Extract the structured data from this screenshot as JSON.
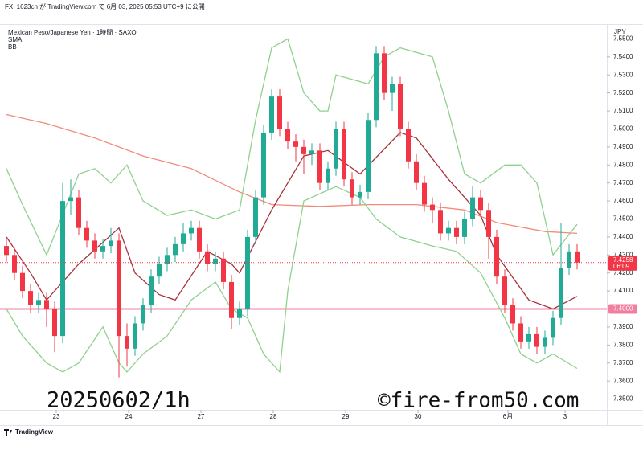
{
  "header": {
    "publisher": "FX_1623ch が TradingView.com で 6月 03, 2025 05:53 UTC+9 に公開"
  },
  "chart_data": {
    "type": "candlestick",
    "title": "Mexican Peso/Japanese Yen · 1時間 · SAXO",
    "currency": "JPY",
    "up_color": "#22ab94",
    "down_color": "#f23645",
    "x": [
      0,
      1,
      2,
      3,
      4,
      5,
      6,
      7,
      8,
      9,
      10,
      11,
      12,
      13,
      14,
      15,
      16,
      17,
      18,
      19,
      20,
      21,
      22,
      23,
      24,
      25,
      26,
      27,
      28,
      29,
      30,
      31,
      32,
      33,
      34,
      35,
      36,
      37,
      38,
      39,
      40,
      41,
      42,
      43,
      44,
      45,
      46,
      47,
      48,
      49,
      50,
      51,
      52,
      53,
      54,
      55,
      56,
      57,
      58,
      59,
      60,
      61,
      62,
      63,
      64,
      65,
      66,
      67,
      68,
      69,
      70,
      71
    ],
    "open": [
      7.435,
      7.43,
      7.42,
      7.41,
      7.402,
      7.405,
      7.4,
      7.385,
      7.46,
      7.462,
      7.445,
      7.438,
      7.432,
      7.435,
      7.438,
      7.385,
      7.378,
      7.392,
      7.402,
      7.418,
      7.425,
      7.43,
      7.436,
      7.442,
      7.445,
      7.432,
      7.425,
      7.428,
      7.415,
      7.395,
      7.4,
      7.44,
      7.462,
      7.498,
      7.518,
      7.5,
      7.493,
      7.49,
      7.486,
      7.488,
      7.47,
      7.478,
      7.5,
      7.472,
      7.462,
      7.465,
      7.505,
      7.542,
      7.52,
      7.525,
      7.5,
      7.482,
      7.47,
      7.458,
      7.455,
      7.442,
      7.445,
      7.44,
      7.45,
      7.462,
      7.455,
      7.44,
      7.418,
      7.402,
      7.392,
      7.382,
      7.386,
      7.379,
      7.384,
      7.395,
      7.423,
      7.432
    ],
    "high": [
      7.439,
      7.434,
      7.424,
      7.414,
      7.409,
      7.409,
      7.404,
      7.47,
      7.472,
      7.466,
      7.449,
      7.442,
      7.439,
      7.445,
      7.442,
      7.392,
      7.396,
      7.406,
      7.422,
      7.429,
      7.434,
      7.44,
      7.448,
      7.449,
      7.449,
      7.436,
      7.432,
      7.432,
      7.419,
      7.404,
      7.444,
      7.466,
      7.502,
      7.522,
      7.522,
      7.504,
      7.497,
      7.494,
      7.492,
      7.492,
      7.482,
      7.504,
      7.504,
      7.476,
      7.469,
      7.509,
      7.546,
      7.546,
      7.529,
      7.529,
      7.504,
      7.486,
      7.474,
      7.462,
      7.459,
      7.449,
      7.449,
      7.454,
      7.468,
      7.466,
      7.459,
      7.444,
      7.422,
      7.406,
      7.396,
      7.39,
      7.39,
      7.388,
      7.399,
      7.448,
      7.436,
      7.436
    ],
    "low": [
      7.426,
      7.416,
      7.406,
      7.398,
      7.398,
      7.39,
      7.376,
      7.381,
      7.452,
      7.441,
      7.434,
      7.428,
      7.428,
      7.431,
      7.362,
      7.368,
      7.374,
      7.388,
      7.398,
      7.414,
      7.421,
      7.426,
      7.432,
      7.438,
      7.428,
      7.421,
      7.421,
      7.411,
      7.389,
      7.391,
      7.396,
      7.436,
      7.458,
      7.494,
      7.496,
      7.489,
      7.482,
      7.475,
      7.48,
      7.466,
      7.466,
      7.474,
      7.468,
      7.458,
      7.458,
      7.461,
      7.501,
      7.516,
      7.51,
      7.496,
      7.478,
      7.466,
      7.454,
      7.448,
      7.438,
      7.438,
      7.436,
      7.436,
      7.446,
      7.451,
      7.428,
      7.414,
      7.398,
      7.388,
      7.378,
      7.378,
      7.375,
      7.375,
      7.38,
      7.391,
      7.419,
      7.422
    ],
    "close": [
      7.43,
      7.42,
      7.41,
      7.402,
      7.405,
      7.4,
      7.385,
      7.46,
      7.462,
      7.445,
      7.438,
      7.432,
      7.435,
      7.438,
      7.385,
      7.378,
      7.392,
      7.402,
      7.418,
      7.425,
      7.43,
      7.436,
      7.442,
      7.445,
      7.432,
      7.425,
      7.428,
      7.415,
      7.395,
      7.4,
      7.44,
      7.462,
      7.498,
      7.518,
      7.5,
      7.493,
      7.49,
      7.486,
      7.488,
      7.47,
      7.478,
      7.5,
      7.472,
      7.462,
      7.465,
      7.505,
      7.542,
      7.52,
      7.525,
      7.5,
      7.482,
      7.47,
      7.458,
      7.455,
      7.442,
      7.445,
      7.44,
      7.45,
      7.462,
      7.455,
      7.44,
      7.418,
      7.402,
      7.392,
      7.382,
      7.386,
      7.379,
      7.384,
      7.395,
      7.423,
      7.432,
      7.4258
    ],
    "indicators": [
      {
        "name": "SMA",
        "lines": [
          {
            "color": "#f28b7a",
            "x": [
              0,
              5,
              11,
              17,
              23,
              29,
              33,
              39,
              45,
              51,
              57,
              61,
              67,
              71
            ],
            "values": [
              7.508,
              7.503,
              7.495,
              7.485,
              7.478,
              7.465,
              7.458,
              7.457,
              7.458,
              7.458,
              7.455,
              7.448,
              7.443,
              7.442
            ]
          }
        ]
      },
      {
        "name": "BB",
        "lines": [
          {
            "color": "#a8323c",
            "x": [
              0,
              3,
              5,
              9,
              14,
              16,
              19,
              21,
              25,
              28,
              29,
              33,
              37,
              40,
              44,
              49,
              51,
              55,
              59,
              61,
              65,
              68,
              71
            ],
            "values": [
              7.44,
              7.42,
              7.405,
              7.425,
              7.445,
              7.42,
              7.408,
              7.405,
              7.432,
              7.425,
              7.42,
              7.455,
              7.485,
              7.488,
              7.475,
              7.498,
              7.495,
              7.472,
              7.452,
              7.43,
              7.405,
              7.4,
              7.407
            ]
          },
          {
            "color": "#8fd18f",
            "x": [
              0,
              2,
              5,
              9,
              11,
              13,
              15,
              17,
              20,
              23,
              26,
              29,
              31,
              33,
              35,
              37,
              39,
              40,
              41,
              45,
              47,
              49,
              53,
              55,
              57,
              59,
              62,
              64,
              66,
              68,
              71
            ],
            "values": [
              7.478,
              7.458,
              7.43,
              7.475,
              7.478,
              7.47,
              7.48,
              7.46,
              7.452,
              7.455,
              7.45,
              7.455,
              7.505,
              7.545,
              7.55,
              7.52,
              7.51,
              7.51,
              7.53,
              7.525,
              7.54,
              7.545,
              7.54,
              7.51,
              7.475,
              7.47,
              7.48,
              7.48,
              7.47,
              7.43,
              7.447
            ]
          },
          {
            "color": "#8fd18f",
            "x": [
              0,
              2,
              5,
              7,
              9,
              12,
              14,
              15,
              17,
              20,
              23,
              26,
              28,
              30,
              32,
              34,
              35,
              37,
              41,
              44,
              46,
              49,
              53,
              56,
              59,
              62,
              64,
              66,
              68,
              71
            ],
            "values": [
              7.4,
              7.385,
              7.37,
              7.365,
              7.37,
              7.39,
              7.37,
              7.365,
              7.375,
              7.385,
              7.405,
              7.415,
              7.4,
              7.395,
              7.375,
              7.365,
              7.41,
              7.46,
              7.468,
              7.462,
              7.45,
              7.44,
              7.435,
              7.432,
              7.42,
              7.395,
              7.375,
              7.37,
              7.375,
              7.367
            ]
          }
        ]
      }
    ],
    "xlim": [
      -0.8,
      74.7
    ],
    "ylim": [
      7.344,
      7.558
    ],
    "xticks": [
      {
        "value": 6.2,
        "label": "23"
      },
      {
        "value": 15.2,
        "label": "24"
      },
      {
        "value": 24.2,
        "label": "27"
      },
      {
        "value": 33.2,
        "label": "28"
      },
      {
        "value": 42.2,
        "label": "29"
      },
      {
        "value": 51.2,
        "label": "30"
      },
      {
        "value": 62.4,
        "label": "6月"
      },
      {
        "value": 69.5,
        "label": "3"
      }
    ],
    "yticks": [
      {
        "value": 7.35,
        "label": "7.3500"
      },
      {
        "value": 7.36,
        "label": "7.3600"
      },
      {
        "value": 7.37,
        "label": "7.3700"
      },
      {
        "value": 7.38,
        "label": "7.3800"
      },
      {
        "value": 7.39,
        "label": "7.3900"
      },
      {
        "value": 7.41,
        "label": "7.4100"
      },
      {
        "value": 7.42,
        "label": "7.4200"
      },
      {
        "value": 7.43,
        "label": "7.4300"
      },
      {
        "value": 7.44,
        "label": "7.4400"
      },
      {
        "value": 7.45,
        "label": "7.4500"
      },
      {
        "value": 7.46,
        "label": "7.4600"
      },
      {
        "value": 7.47,
        "label": "7.4700"
      },
      {
        "value": 7.48,
        "label": "7.4800"
      },
      {
        "value": 7.49,
        "label": "7.4900"
      },
      {
        "value": 7.5,
        "label": "7.5000"
      },
      {
        "value": 7.51,
        "label": "7.5100"
      },
      {
        "value": 7.52,
        "label": "7.5200"
      },
      {
        "value": 7.53,
        "label": "7.5300"
      },
      {
        "value": 7.54,
        "label": "7.5400"
      },
      {
        "value": 7.55,
        "label": "7.5500"
      }
    ],
    "hline": {
      "value": 7.4,
      "label": "7.4000",
      "color": "#f07fa0"
    },
    "last_price": {
      "value": 7.4258,
      "label": "7.4258",
      "countdown": "06:09",
      "color": "#f23645"
    },
    "watermark": "20250602/1h",
    "copyright": "©fire-from50.com"
  },
  "footer": {
    "brand": "TradingView"
  }
}
